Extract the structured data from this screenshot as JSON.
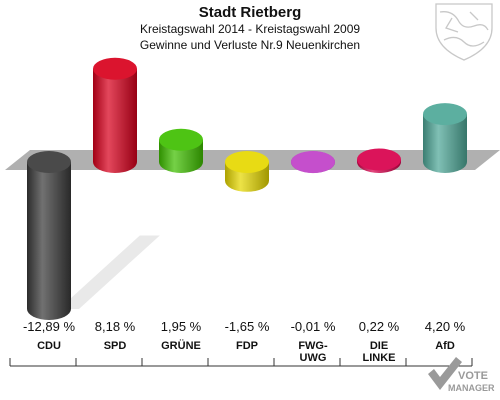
{
  "header": {
    "title": "Stadt Rietberg",
    "subtitle1": "Kreistagswahl 2014 - Kreistagswahl 2009",
    "subtitle2": "Gewinne und Verluste Nr.9 Neuenkirchen"
  },
  "brand": {
    "line1": "VOTE",
    "line2": "MANAGER"
  },
  "chart_data": {
    "type": "bar",
    "title": "Stadt Rietberg",
    "subtitle": "Kreistagswahl 2014 - Kreistagswahl 2009 / Gewinne und Verluste Nr.9 Neuenkirchen",
    "unit": "%",
    "categories": [
      "CDU",
      "SPD",
      "GRÜNE",
      "FDP",
      "FWG-UWG",
      "DIE LINKE",
      "AfD"
    ],
    "category_lines": [
      [
        "CDU"
      ],
      [
        "SPD"
      ],
      [
        "GRÜNE"
      ],
      [
        "FDP"
      ],
      [
        "FWG-",
        "UWG"
      ],
      [
        "DIE",
        "LINKE"
      ],
      [
        "AfD"
      ]
    ],
    "values": [
      -12.89,
      8.18,
      1.95,
      -1.65,
      -0.01,
      0.22,
      4.2
    ],
    "labels": [
      "-12,89 %",
      "8,18 %",
      "1,95 %",
      "-1,65 %",
      "-0,01 %",
      "0,22 %",
      "4,20 %"
    ],
    "colors": [
      "#3a3a3a",
      "#d8001c",
      "#3fbf00",
      "#e6d800",
      "#c040c8",
      "#d8004c",
      "#4ea898"
    ],
    "ylim": [
      -14,
      9
    ],
    "grid": false
  }
}
